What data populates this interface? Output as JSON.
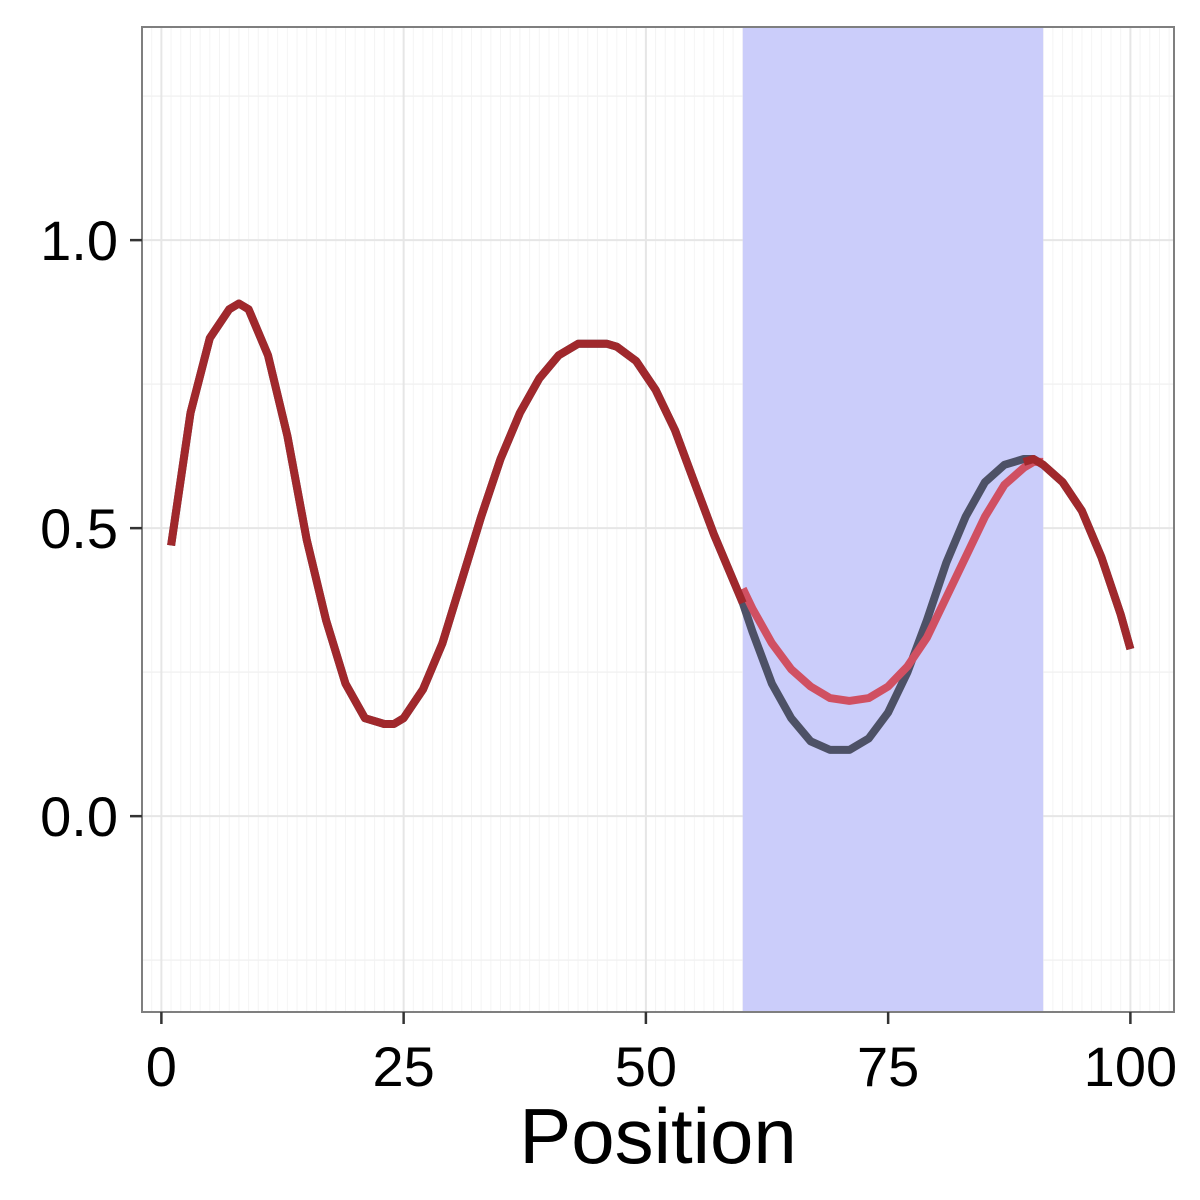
{
  "chart_data": {
    "type": "line",
    "title": "",
    "xlabel": "Position",
    "ylabel": "",
    "xlim": [
      -2,
      104.5
    ],
    "ylim": [
      -0.34,
      1.37
    ],
    "x_ticks": [
      0,
      25,
      50,
      75,
      100
    ],
    "x_tick_labels": [
      "0",
      "25",
      "50",
      "75",
      "100"
    ],
    "y_ticks": [
      0.0,
      0.5,
      1.0
    ],
    "y_tick_labels": [
      "0.0",
      "0.5",
      "1.0"
    ],
    "grid": true,
    "legend": "none",
    "highlight_region": {
      "x_start": 60,
      "x_end": 91,
      "color": "#c9cbfa"
    },
    "series": [
      {
        "color": "#4d5166",
        "x": [
          1,
          3,
          5,
          7,
          8,
          9,
          11,
          13,
          15,
          17,
          19,
          21,
          23,
          24,
          25,
          27,
          29,
          31,
          33,
          35,
          37,
          39,
          41,
          43,
          45,
          46,
          47,
          49,
          51,
          53,
          55,
          57,
          59,
          60,
          61,
          63,
          65,
          67,
          69,
          71,
          73,
          75,
          77,
          79,
          81,
          83,
          85,
          87,
          89,
          90,
          91,
          93,
          95,
          97,
          99,
          100
        ],
        "y": [
          0.47,
          0.7,
          0.83,
          0.88,
          0.89,
          0.88,
          0.8,
          0.66,
          0.48,
          0.34,
          0.23,
          0.17,
          0.16,
          0.16,
          0.17,
          0.22,
          0.3,
          0.41,
          0.52,
          0.62,
          0.7,
          0.76,
          0.8,
          0.82,
          0.82,
          0.82,
          0.815,
          0.79,
          0.74,
          0.67,
          0.58,
          0.49,
          0.41,
          0.37,
          0.32,
          0.23,
          0.17,
          0.13,
          0.115,
          0.115,
          0.135,
          0.18,
          0.25,
          0.34,
          0.44,
          0.52,
          0.58,
          0.61,
          0.62,
          0.62,
          0.61,
          0.58,
          0.53,
          0.45,
          0.35,
          0.29
        ]
      },
      {
        "color": "#d05062",
        "x": [
          60,
          61,
          63,
          65,
          67,
          69,
          71,
          73,
          75,
          77,
          79,
          81,
          83,
          85,
          87,
          89,
          90,
          91
        ],
        "y": [
          0.395,
          0.36,
          0.3,
          0.255,
          0.225,
          0.205,
          0.2,
          0.205,
          0.225,
          0.26,
          0.31,
          0.38,
          0.45,
          0.52,
          0.575,
          0.605,
          0.615,
          0.615
        ]
      },
      {
        "color": "#a0282c",
        "x": [
          1,
          3,
          5,
          7,
          8,
          9,
          11,
          13,
          15,
          17,
          19,
          21,
          23,
          24,
          25,
          27,
          29,
          31,
          33,
          35,
          37,
          39,
          41,
          43,
          45,
          46,
          47,
          49,
          51,
          53,
          55,
          57,
          59,
          60
        ],
        "y": [
          0.47,
          0.7,
          0.83,
          0.88,
          0.89,
          0.88,
          0.8,
          0.66,
          0.48,
          0.34,
          0.23,
          0.17,
          0.16,
          0.16,
          0.17,
          0.22,
          0.3,
          0.41,
          0.52,
          0.62,
          0.7,
          0.76,
          0.8,
          0.82,
          0.82,
          0.82,
          0.815,
          0.79,
          0.74,
          0.67,
          0.58,
          0.49,
          0.41,
          0.37
        ]
      },
      {
        "color": "#a0282c",
        "x": [
          89,
          90,
          91,
          93,
          95,
          97,
          99,
          100
        ],
        "y": [
          0.615,
          0.62,
          0.61,
          0.58,
          0.53,
          0.45,
          0.35,
          0.29
        ]
      }
    ]
  }
}
